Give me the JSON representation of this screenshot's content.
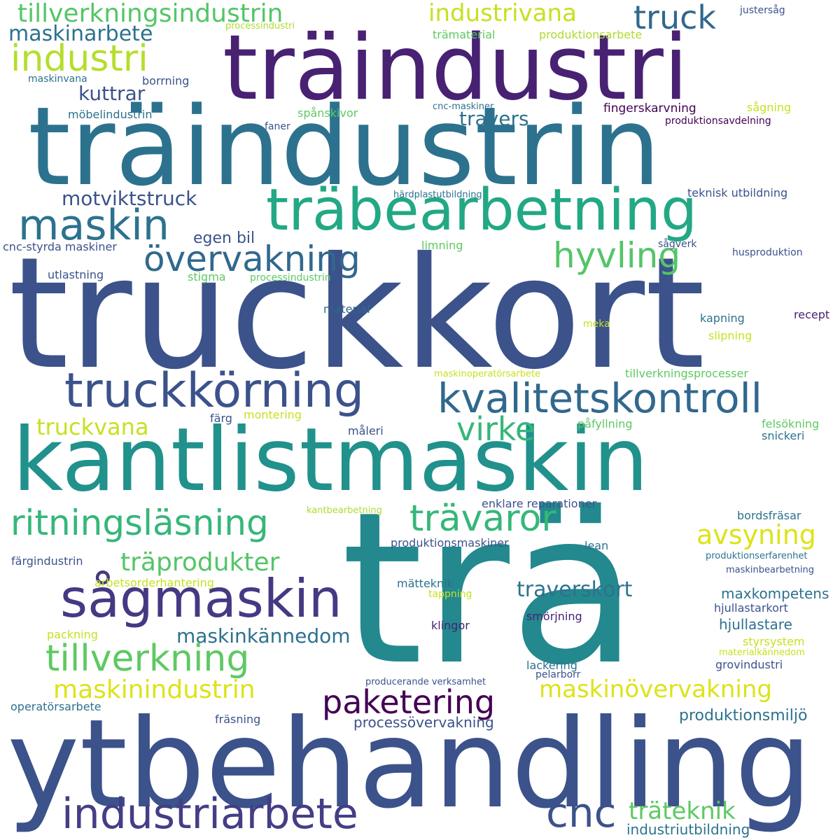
{
  "words": [
    {
      "text": "trä",
      "color": "#23898e"
    },
    {
      "text": "truckkort",
      "color": "#3b528b"
    },
    {
      "text": "träindustrin",
      "color": "#2c728e"
    },
    {
      "text": "ytbehandling",
      "color": "#3b528b"
    },
    {
      "text": "kantlistmaskin",
      "color": "#21918c"
    },
    {
      "text": "träindustri",
      "color": "#482173"
    },
    {
      "text": "träbearbetning",
      "color": "#22a884"
    },
    {
      "text": "truckkörning",
      "color": "#3b528b"
    },
    {
      "text": "sågmaskin",
      "color": "#443983"
    },
    {
      "text": "industriarbete",
      "color": "#433e85"
    },
    {
      "text": "kvalitetskontroll",
      "color": "#31688e"
    },
    {
      "text": "maskin",
      "color": "#2c728e"
    },
    {
      "text": "ritningsläsning",
      "color": "#35b779"
    },
    {
      "text": "tillverkning",
      "color": "#5ec962"
    },
    {
      "text": "övervakning",
      "color": "#31688e"
    },
    {
      "text": "trävaror",
      "color": "#35b779"
    },
    {
      "text": "industri",
      "color": "#b5de2b"
    },
    {
      "text": "cnc",
      "color": "#3b528b"
    },
    {
      "text": "virke",
      "color": "#35b779"
    },
    {
      "text": "hyvling",
      "color": "#54c568"
    },
    {
      "text": "truck",
      "color": "#31688e"
    },
    {
      "text": "paketering",
      "color": "#440154"
    },
    {
      "text": "avsyning",
      "color": "#dde318"
    },
    {
      "text": "tillverkningsindustrin",
      "color": "#54c568"
    },
    {
      "text": "träprodukter",
      "color": "#54c568"
    },
    {
      "text": "maskinindustrin",
      "color": "#dde318"
    },
    {
      "text": "maskinövervakning",
      "color": "#dde318"
    },
    {
      "text": "truckvana",
      "color": "#c8e020"
    },
    {
      "text": "industrivana",
      "color": "#c8e020"
    },
    {
      "text": "träteknik",
      "color": "#5ec962"
    },
    {
      "text": "maskinkännedom",
      "color": "#2c728e"
    },
    {
      "text": "traverskort",
      "color": "#2c728e"
    },
    {
      "text": "maskinarbete",
      "color": "#2c728e"
    },
    {
      "text": "motviktstruck",
      "color": "#3b528b"
    },
    {
      "text": "kuttrar",
      "color": "#3b528b"
    },
    {
      "text": "travers",
      "color": "#2c728e"
    },
    {
      "text": "produktionsmiljö",
      "color": "#2c728e"
    },
    {
      "text": "industriutbildning",
      "color": "#2c728e"
    },
    {
      "text": "egen bil",
      "color": "#3b528b"
    },
    {
      "text": "processövervakning",
      "color": "#3b528b"
    },
    {
      "text": "maxkompetens",
      "color": "#2c728e"
    },
    {
      "text": "hjullastare",
      "color": "#2c728e"
    },
    {
      "text": "fingerskarvning",
      "color": "#440154"
    },
    {
      "text": "processindustri",
      "color": "#addc30"
    },
    {
      "text": "justersåg",
      "color": "#3b528b"
    },
    {
      "text": "trämaterial",
      "color": "#5ec962"
    },
    {
      "text": "produktionsarbete",
      "color": "#addc30"
    },
    {
      "text": "maskinvana",
      "color": "#2c728e"
    },
    {
      "text": "borrning",
      "color": "#3b528b"
    },
    {
      "text": "cnc-maskiner",
      "color": "#2c728e"
    },
    {
      "text": "sågning",
      "color": "#c8e020"
    },
    {
      "text": "möbelindustrin",
      "color": "#2c728e"
    },
    {
      "text": "spånskivor",
      "color": "#5ec962"
    },
    {
      "text": "produktionsavdelning",
      "color": "#440154"
    },
    {
      "text": "faner",
      "color": "#3b528b"
    },
    {
      "text": "härdplastutbildning",
      "color": "#2c728e"
    },
    {
      "text": "teknisk utbildning",
      "color": "#3b528b"
    },
    {
      "text": "cnc-styrda maskiner",
      "color": "#3b528b"
    },
    {
      "text": "limning",
      "color": "#5ec962"
    },
    {
      "text": "sågverk",
      "color": "#3b528b"
    },
    {
      "text": "husproduktion",
      "color": "#3b528b"
    },
    {
      "text": "utlastning",
      "color": "#3b528b"
    },
    {
      "text": "stigma",
      "color": "#5ec962"
    },
    {
      "text": "processindustrin",
      "color": "#5ec962"
    },
    {
      "text": "material",
      "color": "#31688e"
    },
    {
      "text": "meka",
      "color": "#c8e020"
    },
    {
      "text": "kapning",
      "color": "#2c728e"
    },
    {
      "text": "slipning",
      "color": "#c8e020"
    },
    {
      "text": "recept",
      "color": "#482173"
    },
    {
      "text": "maskinoperatörsarbete",
      "color": "#c8e020"
    },
    {
      "text": "tillverkningsprocesser",
      "color": "#5ec962"
    },
    {
      "text": "färg",
      "color": "#3b528b"
    },
    {
      "text": "montering",
      "color": "#c8e020"
    },
    {
      "text": "påfyllning",
      "color": "#5ec962"
    },
    {
      "text": "felsökning",
      "color": "#5ec962"
    },
    {
      "text": "måleri",
      "color": "#3b528b"
    },
    {
      "text": "snickeri",
      "color": "#2c728e"
    },
    {
      "text": "kantbearbetning",
      "color": "#addc30"
    },
    {
      "text": "enklare reparationer",
      "color": "#3b528b"
    },
    {
      "text": "bordsfräsar",
      "color": "#2c728e"
    },
    {
      "text": "produktionsmaskiner",
      "color": "#3b528b"
    },
    {
      "text": "lean",
      "color": "#2c728e"
    },
    {
      "text": "färgindustrin",
      "color": "#3b528b"
    },
    {
      "text": "produktionserfarenhet",
      "color": "#2c728e"
    },
    {
      "text": "arbetsorderhantering",
      "color": "#c8e020"
    },
    {
      "text": "maskinbearbetning",
      "color": "#3b528b"
    },
    {
      "text": "mätteknik",
      "color": "#2c728e"
    },
    {
      "text": "tappning",
      "color": "#c8e020"
    },
    {
      "text": "hjullastarkort",
      "color": "#3b528b"
    },
    {
      "text": "smörjning",
      "color": "#482173"
    },
    {
      "text": "klingor",
      "color": "#482173"
    },
    {
      "text": "packning",
      "color": "#c8e020"
    },
    {
      "text": "styrsystem",
      "color": "#c8e020"
    },
    {
      "text": "materialkännedom",
      "color": "#c8e020"
    },
    {
      "text": "lackering",
      "color": "#2c728e"
    },
    {
      "text": "grovindustri",
      "color": "#3b528b"
    },
    {
      "text": "pelarborr",
      "color": "#3b528b"
    },
    {
      "text": "producerande verksamhet",
      "color": "#3b528b"
    },
    {
      "text": "operatörsarbete",
      "color": "#2c728e"
    },
    {
      "text": "fräsning",
      "color": "#3b528b"
    }
  ]
}
